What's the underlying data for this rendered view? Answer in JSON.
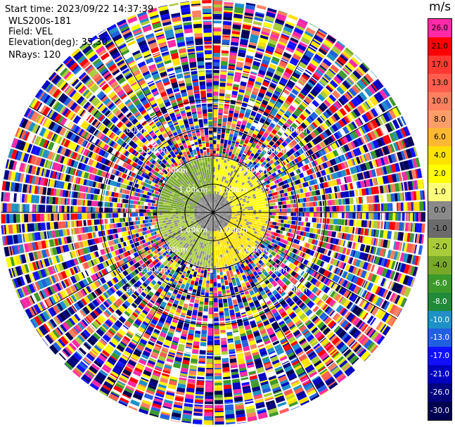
{
  "header": {
    "start_time": "Start time: 2023/09/22 14:37:39",
    "site": "WLS200s-181",
    "field": "Field: VEL",
    "elevation": "Elevation(deg): 35.30",
    "nrays": "NRays: 120"
  },
  "colorbar": {
    "units": "m/s",
    "levels": [
      {
        "label": "26.0",
        "color": "#ff2aa6"
      },
      {
        "label": "21.0",
        "color": "#ff0000"
      },
      {
        "label": "17.0",
        "color": "#ff3b33"
      },
      {
        "label": "13.0",
        "color": "#ff5e4f"
      },
      {
        "label": "10.0",
        "color": "#ff8060"
      },
      {
        "label": "8.0",
        "color": "#ff9e66"
      },
      {
        "label": "6.0",
        "color": "#ffb833"
      },
      {
        "label": "4.0",
        "color": "#ffe100"
      },
      {
        "label": "2.0",
        "color": "#ffff00"
      },
      {
        "label": "1.0",
        "color": "#fffe7a"
      },
      {
        "label": "0.0",
        "color": "#8a8a8a"
      },
      {
        "label": "-1.0",
        "color": "#6b6b6b"
      },
      {
        "label": "-2.0",
        "color": "#a8cc3c"
      },
      {
        "label": "-4.0",
        "color": "#78a828"
      },
      {
        "label": "-6.0",
        "color": "#3c9a2a"
      },
      {
        "label": "-8.0",
        "color": "#1e8a3a"
      },
      {
        "label": "-10.0",
        "color": "#1e90c8"
      },
      {
        "label": "-13.0",
        "color": "#2060e0"
      },
      {
        "label": "-17.0",
        "color": "#1010ff"
      },
      {
        "label": "-21.0",
        "color": "#0000c0"
      },
      {
        "label": "-26.0",
        "color": "#000080"
      },
      {
        "label": "-30.0",
        "color": "#000050"
      }
    ]
  },
  "chart_data": {
    "type": "heatmap",
    "projection": "polar",
    "field": "VEL",
    "units": "m/s",
    "nrays": 120,
    "range_ring_labels_km": [
      1.0,
      2.0,
      3.0,
      4.0
    ],
    "range_ring_label_text": "0.00km",
    "clean_data_radius_km": 1.25,
    "inner_pattern": {
      "description_regions": [
        {
          "azimuth_deg_from": 270,
          "azimuth_deg_to": 360,
          "value": -4.0
        },
        {
          "azimuth_deg_from": 180,
          "azimuth_deg_to": 270,
          "value": -2.0
        },
        {
          "azimuth_deg_from": 0,
          "azimuth_deg_to": 90,
          "value": 2.0
        },
        {
          "azimuth_deg_from": 90,
          "azimuth_deg_to": 180,
          "value": 4.0
        }
      ],
      "near_zero_core_radius_km": 0.4
    },
    "outer_region": "noise"
  }
}
